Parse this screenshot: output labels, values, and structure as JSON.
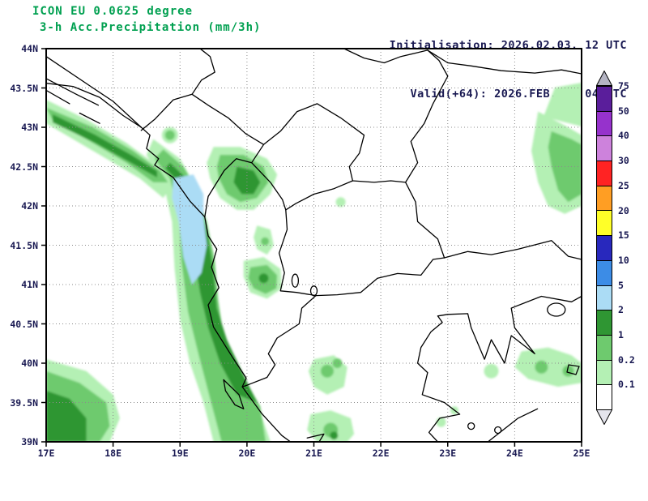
{
  "header": {
    "model_line": "ICON EU 0.0625 degree",
    "param_line": "3-h Acc.Precipitation (mm/3h)",
    "init_line": "Initialisation: 2026.02.03. 12 UTC",
    "valid_line": "Valid(+64): 2026.FEB.06. 04 UTC"
  },
  "axes": {
    "lat_labels": [
      "44N",
      "43.5N",
      "43N",
      "42.5N",
      "42N",
      "41.5N",
      "41N",
      "40.5N",
      "40N",
      "39.5N",
      "39N"
    ],
    "lon_labels": [
      "17E",
      "18E",
      "19E",
      "20E",
      "21E",
      "22E",
      "23E",
      "24E",
      "25E"
    ]
  },
  "colorbar": {
    "unit": "mm/3h",
    "boundary_labels_top_to_bottom": [
      "75",
      "50",
      "40",
      "30",
      "25",
      "20",
      "15",
      "10",
      "5",
      "2",
      "1",
      "0.2",
      "0.1"
    ],
    "segment_colors_top_to_bottom": [
      "#5a1e9b",
      "#9632cc",
      "#cd82dc",
      "#ff2323",
      "#ff9e23",
      "#ffff28",
      "#2828bd",
      "#3c8ce6",
      "#abdcf5",
      "#2f9633",
      "#6eca6e",
      "#b4f0b4",
      "#ffffff"
    ],
    "arrow_top_color": "#b4b4c3",
    "arrow_bottom_color": "#e4e4ec"
  },
  "palette": {
    "precip_light_green": "#b4f0b4",
    "precip_mid_green": "#6eca6e",
    "precip_dark_green": "#2f9633",
    "precip_pale_blue": "#abdcf5",
    "title_green": "#00a050",
    "text_navy": "#191952",
    "border_black": "#000000",
    "grid_gray": "#8c8c8c"
  }
}
